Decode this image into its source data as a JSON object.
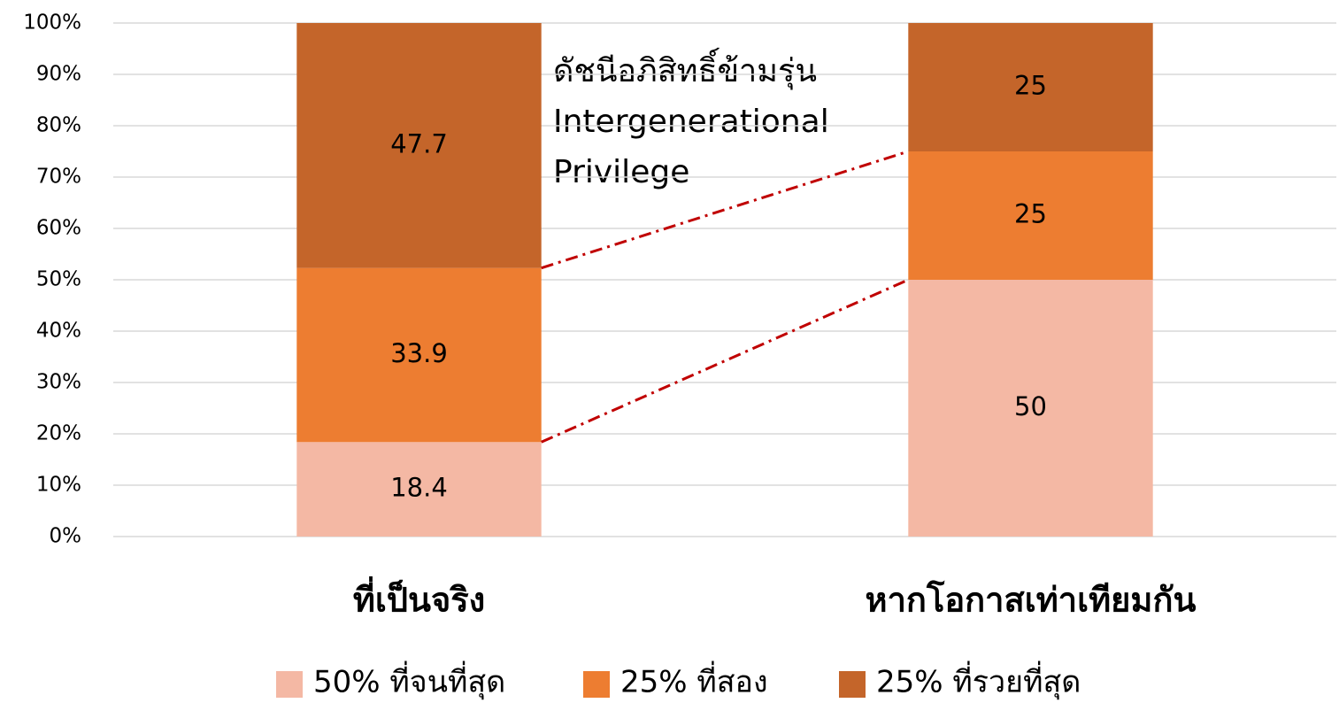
{
  "chart_data": {
    "type": "stacked_bar",
    "annotation": [
      "ดัชนีอภิสิทธิ์ข้ามรุ่น",
      "Intergenerational",
      "Privilege"
    ],
    "categories": [
      "ที่เป็นจริง",
      "หากโอกาสเท่าเทียมกัน"
    ],
    "series": [
      {
        "name": "50% ที่จนที่สุด",
        "color": "#f4b8a4",
        "values": [
          18.4,
          50
        ]
      },
      {
        "name": "25% ที่สอง",
        "color": "#ed7d31",
        "values": [
          33.9,
          25
        ]
      },
      {
        "name": "25% ที่รวยที่สุด",
        "color": "#c4652a",
        "values": [
          47.7,
          25
        ]
      }
    ],
    "ylim": [
      0,
      100
    ],
    "yticks": [
      {
        "value": 0,
        "label": "0%"
      },
      {
        "value": 10,
        "label": "10%"
      },
      {
        "value": 20,
        "label": "20%"
      },
      {
        "value": 30,
        "label": "30%"
      },
      {
        "value": 40,
        "label": "40%"
      },
      {
        "value": 50,
        "label": "50%"
      },
      {
        "value": 60,
        "label": "60%"
      },
      {
        "value": 70,
        "label": "70%"
      },
      {
        "value": 80,
        "label": "80%"
      },
      {
        "value": 90,
        "label": "90%"
      },
      {
        "value": 100,
        "label": "100%"
      }
    ],
    "grid": true,
    "legend": "bottom",
    "connector_color": "#c00000"
  }
}
